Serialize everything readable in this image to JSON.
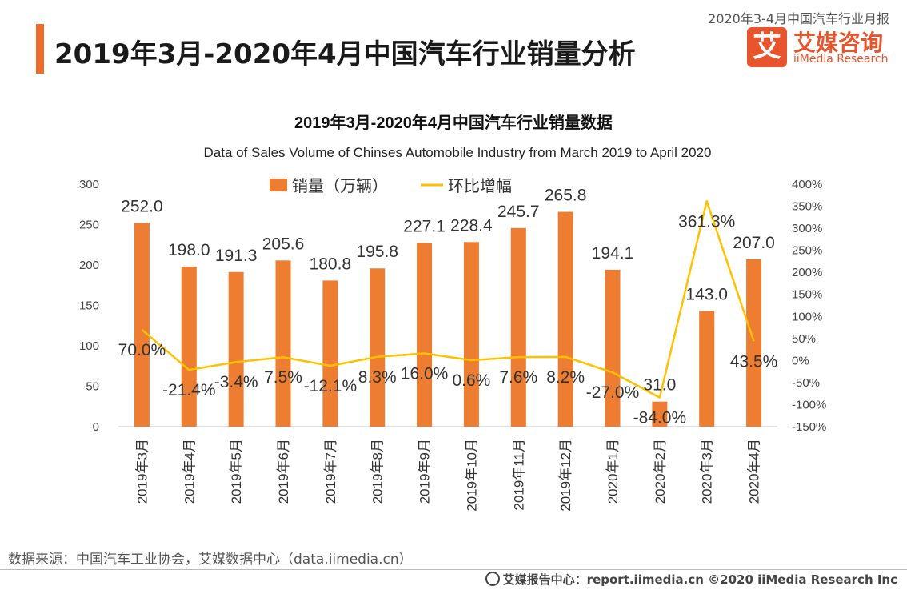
{
  "header": {
    "title": "2019年3月-2020年4月中国汽车行业销量分析",
    "report_tag": "2020年3-4月中国汽车行业月报"
  },
  "logo": {
    "mark": "艾",
    "cn": "艾媒咨询",
    "en": "iiMedia Research"
  },
  "colors": {
    "bar": "#ed7d31",
    "line": "#ffc000",
    "accent": "#ef6b2b"
  },
  "chart_data": {
    "type": "bar",
    "title": "2019年3月-2020年4月中国汽车行业销量数据",
    "subtitle": "Data of Sales Volume of Chinses Automobile Industry from March 2019 to April 2020",
    "categories": [
      "2019年3月",
      "2019年4月",
      "2019年5月",
      "2019年6月",
      "2019年7月",
      "2019年8月",
      "2019年9月",
      "2019年10月",
      "2019年11月",
      "2019年12月",
      "2020年1月",
      "2020年2月",
      "2020年3月",
      "2020年4月"
    ],
    "series": [
      {
        "name": "销量（万辆）",
        "type": "bar",
        "axis": "left",
        "values": [
          252.0,
          198.0,
          191.3,
          205.6,
          180.8,
          195.8,
          227.1,
          228.4,
          245.7,
          265.8,
          194.1,
          31.0,
          143.0,
          207.0
        ],
        "labels": [
          "252.0",
          "198.0",
          "191.3",
          "205.6",
          "180.8",
          "195.8",
          "227.1",
          "228.4",
          "245.7",
          "265.8",
          "194.1",
          "31.0",
          "143.0",
          "207.0"
        ]
      },
      {
        "name": "环比增幅",
        "type": "line",
        "axis": "right",
        "values": [
          70.0,
          -21.4,
          -3.4,
          7.5,
          -12.1,
          8.3,
          16.0,
          0.6,
          7.6,
          8.2,
          -27.0,
          -84.0,
          361.3,
          43.5
        ],
        "labels": [
          "70.0%",
          "-21.4%",
          "-3.4%",
          "7.5%",
          "-12.1%",
          "8.3%",
          "16.0%",
          "0.6%",
          "7.6%",
          "8.2%",
          "-27.0%",
          "-84.0%",
          "361.3%",
          "43.5%"
        ]
      }
    ],
    "y_left": {
      "min": 0,
      "max": 300,
      "ticks": [
        "0",
        "50",
        "100",
        "150",
        "200",
        "250",
        "300"
      ]
    },
    "y_right": {
      "min": -150,
      "max": 400,
      "ticks": [
        "-150%",
        "-100%",
        "-50%",
        "0%",
        "50%",
        "100%",
        "150%",
        "200%",
        "250%",
        "300%",
        "350%",
        "400%"
      ]
    },
    "legend": "top-center"
  },
  "source": "数据来源：中国汽车工业协会，艾媒数据中心（data.iimedia.cn）",
  "footer": "艾媒报告中心：report.iimedia.cn  ©2020  iiMedia Research  Inc"
}
